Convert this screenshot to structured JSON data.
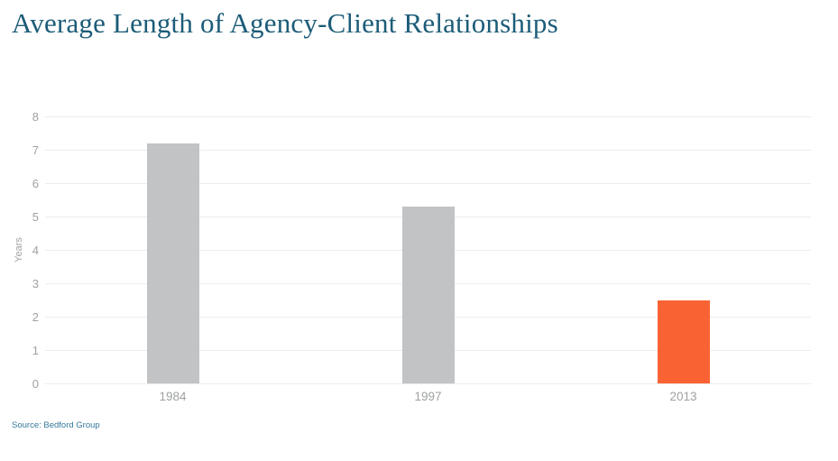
{
  "header": {
    "title": "Average Length of Agency-Client Relationships"
  },
  "footer": {
    "source": "Source: Bedford Group"
  },
  "colors": {
    "title_text": "#1c5c78",
    "axis_text": "#9fa1a3",
    "gridline": "#ececec",
    "bar_default": "#c1c3c5",
    "bar_highlight": "#f96334",
    "source_text": "#35789a",
    "background": "#ffffff"
  },
  "chart_data": {
    "type": "bar",
    "title": "Average Length of Agency-Client Relationships",
    "categories": [
      "1984",
      "1997",
      "2013"
    ],
    "values": [
      7.2,
      5.3,
      2.5
    ],
    "bar_colors": [
      "#c1c3c5",
      "#c1c3c5",
      "#f96334"
    ],
    "xlabel": "",
    "ylabel": "Years",
    "ylim": [
      0,
      8
    ],
    "ytick_step": 1,
    "yticks": [
      0,
      1,
      2,
      3,
      4,
      5,
      6,
      7,
      8
    ],
    "grid": true,
    "legend_position": "none"
  }
}
